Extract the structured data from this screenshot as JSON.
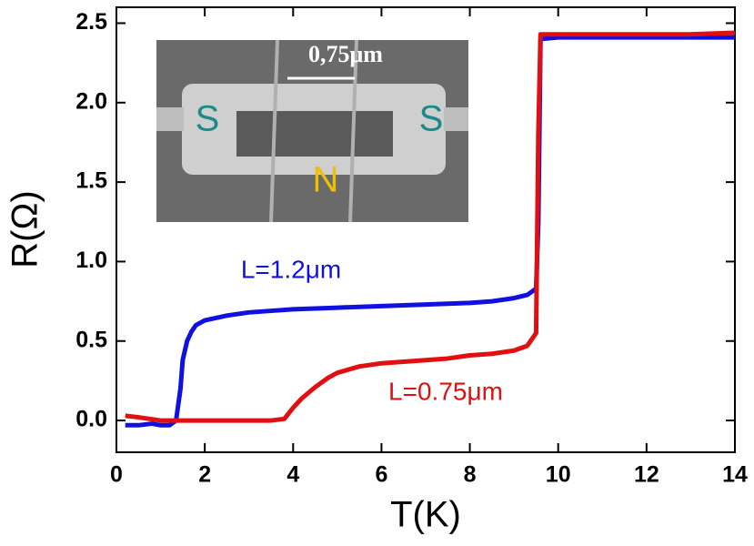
{
  "chart_data": {
    "type": "line",
    "xlabel": "T(K)",
    "ylabel": "R(Ω)",
    "xlim": [
      0,
      14
    ],
    "ylim": [
      -0.2,
      2.6
    ],
    "xticks": [
      0,
      2,
      4,
      6,
      8,
      10,
      12,
      14
    ],
    "yticks": [
      {
        "value": 0,
        "label": "0.0"
      },
      0.5,
      {
        "value": 1,
        "label": "1.0"
      },
      1.5,
      {
        "value": 2,
        "label": "2.0"
      },
      2.5
    ],
    "annotations": [
      "0,75μm",
      "S",
      "S",
      "N"
    ],
    "series": [
      {
        "name": "L=1.2μm",
        "color": "#1010e0",
        "x": [
          0.2,
          0.5,
          0.8,
          1.0,
          1.2,
          1.35,
          1.45,
          1.5,
          1.6,
          1.7,
          1.8,
          2,
          2.5,
          3,
          3.5,
          4,
          5,
          6,
          7,
          8,
          8.5,
          9,
          9.3,
          9.5,
          9.55,
          9.6,
          10,
          11,
          12,
          13,
          14
        ],
        "values": [
          -0.03,
          -0.03,
          -0.02,
          -0.03,
          -0.03,
          0.0,
          0.2,
          0.38,
          0.5,
          0.56,
          0.6,
          0.63,
          0.66,
          0.68,
          0.69,
          0.7,
          0.71,
          0.72,
          0.73,
          0.74,
          0.75,
          0.77,
          0.79,
          0.83,
          1.24,
          2.4,
          2.41,
          2.41,
          2.41,
          2.41,
          2.41
        ]
      },
      {
        "name": "L=0.75μm",
        "color": "#e01010",
        "x": [
          0.2,
          0.5,
          1,
          1.5,
          2,
          2.5,
          3,
          3.5,
          3.8,
          4,
          4.2,
          4.5,
          4.8,
          5,
          5.5,
          6,
          6.5,
          7,
          7.5,
          8,
          8.5,
          9,
          9.3,
          9.5,
          9.55,
          9.6,
          10,
          11,
          12,
          13,
          14
        ],
        "values": [
          0.03,
          0.02,
          0.0,
          0.0,
          0.0,
          0.0,
          0.0,
          0.0,
          0.01,
          0.08,
          0.14,
          0.21,
          0.27,
          0.3,
          0.34,
          0.36,
          0.37,
          0.38,
          0.39,
          0.41,
          0.42,
          0.44,
          0.47,
          0.55,
          1.8,
          2.43,
          2.43,
          2.43,
          2.43,
          2.43,
          2.44
        ]
      }
    ]
  }
}
